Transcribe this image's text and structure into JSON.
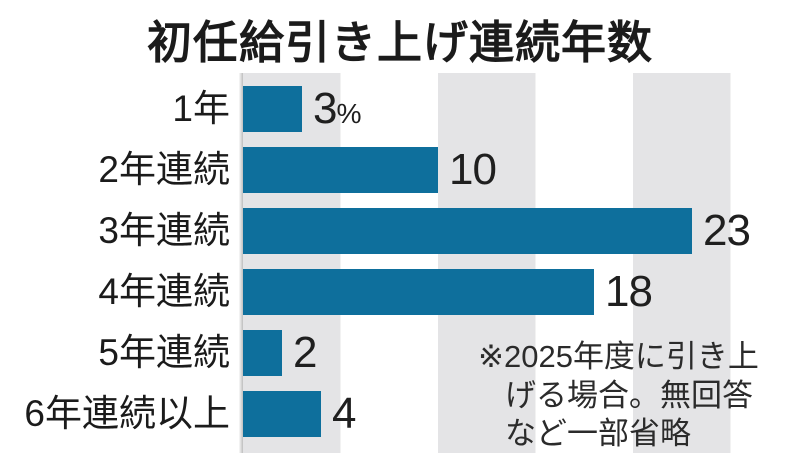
{
  "title": "初任給引き上げ連続年数",
  "chart_data": {
    "type": "bar",
    "orientation": "horizontal",
    "title": "初任給引き上げ連続年数",
    "categories": [
      "1年",
      "2年連続",
      "3年連続",
      "4年連続",
      "5年連続",
      "6年連続以上"
    ],
    "values": [
      3,
      10,
      23,
      18,
      2,
      4
    ],
    "value_labels": [
      "3%",
      "10",
      "23",
      "18",
      "2",
      "4"
    ],
    "unit": "%",
    "xlim": [
      0,
      28.5
    ],
    "grid_band_interval": 5,
    "grid": "vertical-bands",
    "legend_position": "none",
    "bar_color": "#0e6f9c",
    "band_color": "#e4e4e6"
  },
  "footnote": {
    "lines": [
      "※2025年度に引き上",
      "げる場合。無回答",
      "など一部省略"
    ]
  }
}
